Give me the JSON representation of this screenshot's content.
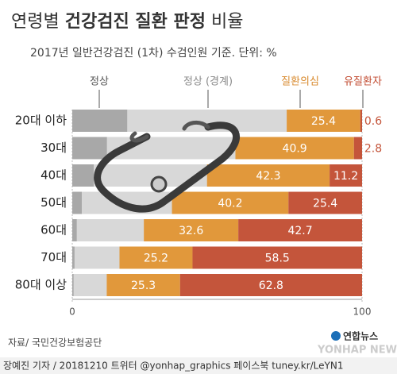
{
  "chart_data": {
    "type": "stacked-bar-horizontal",
    "title_segments": [
      "연령별",
      "건강검진 질환 판정",
      "비율"
    ],
    "subtitle": "2017년 일반건강검진 (1차) 수검인원 기준. 단위: %",
    "categories": [
      "20대 이하",
      "30대",
      "40대",
      "50대",
      "60대",
      "70대",
      "80대 이상"
    ],
    "series": [
      {
        "name": "정상",
        "color": "#a8a8a8",
        "label_color": "#555555",
        "labels": false,
        "values": [
          19,
          12,
          7.4,
          3.3,
          1.6,
          0.8,
          0.5
        ]
      },
      {
        "name": "정상 (경계)",
        "color": "#d8d8d8",
        "label_color": "#8a8a8a",
        "labels": false,
        "values": [
          55,
          44.3,
          39.1,
          31.1,
          23.1,
          15.5,
          11.4
        ]
      },
      {
        "name": "질환의심",
        "color": "#e1983b",
        "label_color": "#d8892c",
        "labels": true,
        "values": [
          25.4,
          40.9,
          42.3,
          40.2,
          32.6,
          25.2,
          25.3
        ]
      },
      {
        "name": "유질환자",
        "color": "#c4553b",
        "label_color": "#c0472c",
        "labels": true,
        "values": [
          0.6,
          2.8,
          11.2,
          25.4,
          42.7,
          58.5,
          62.8
        ]
      }
    ],
    "xlim": [
      0,
      100
    ],
    "xticks": [
      0,
      100
    ],
    "source": "자료/ 국민건강보험공단",
    "footer": "장예진 기자 / 20181210 트위터 @yonhap_graphics 페이스북 tuney.kr/LeYN1",
    "logo": "연합뉴스",
    "logo_en": "YONHAP NEWS"
  }
}
